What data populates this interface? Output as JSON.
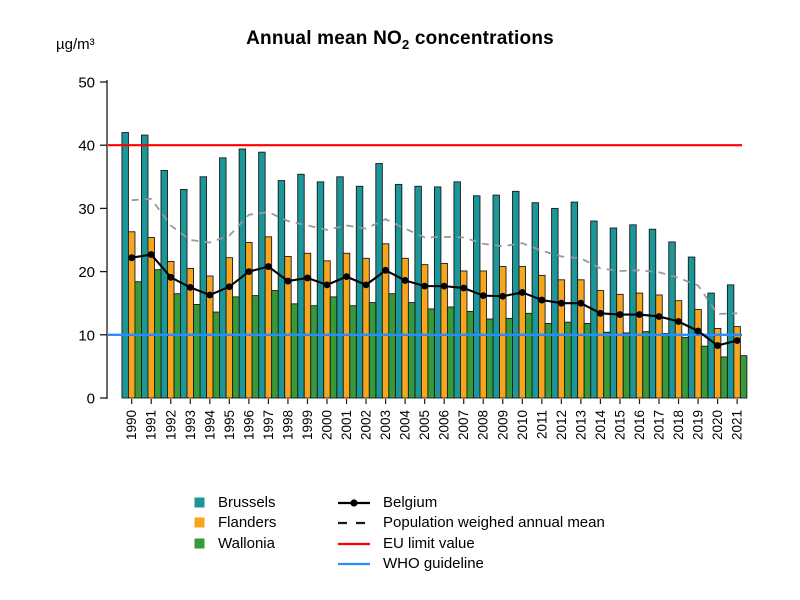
{
  "title": {
    "prefix": "Annual mean NO",
    "sub": "2",
    "suffix": " concentrations"
  },
  "y_axis": {
    "unit_label": "µg/m³",
    "ticks": [
      0,
      10,
      20,
      30,
      40,
      50
    ],
    "min": 0,
    "max": 50
  },
  "x_axis": {
    "label_rotation": -90
  },
  "chart_data": {
    "type": "bar",
    "title": "Annual mean NO2 concentrations",
    "ylabel": "µg/m³",
    "ylim": [
      0,
      50
    ],
    "grid": false,
    "legend_position": "bottom",
    "categories": [
      1990,
      1991,
      1992,
      1993,
      1994,
      1995,
      1996,
      1997,
      1998,
      1999,
      2000,
      2001,
      2002,
      2003,
      2004,
      2005,
      2006,
      2007,
      2008,
      2009,
      2010,
      2011,
      2012,
      2013,
      2014,
      2015,
      2016,
      2017,
      2018,
      2019,
      2020,
      2021
    ],
    "series": [
      {
        "name": "Brussels",
        "type": "bar",
        "color": "#1B9699",
        "values": [
          42.0,
          41.6,
          36.0,
          33.0,
          35.0,
          38.0,
          39.4,
          38.9,
          34.4,
          35.4,
          34.2,
          35.0,
          33.5,
          37.1,
          33.8,
          33.5,
          33.4,
          34.2,
          32.0,
          32.1,
          32.7,
          30.9,
          30.0,
          31.0,
          28.0,
          26.9,
          27.4,
          26.7,
          24.7,
          22.3,
          16.6,
          17.9
        ]
      },
      {
        "name": "Flanders",
        "type": "bar",
        "color": "#F8A51E",
        "values": [
          26.3,
          25.4,
          21.6,
          20.5,
          19.3,
          22.2,
          24.6,
          25.5,
          22.4,
          22.9,
          21.7,
          22.9,
          22.1,
          24.4,
          22.1,
          21.1,
          21.3,
          20.1,
          20.1,
          20.8,
          20.8,
          19.4,
          18.7,
          18.7,
          17.0,
          16.4,
          16.6,
          16.3,
          15.4,
          14.0,
          11.0,
          11.3
        ]
      },
      {
        "name": "Wallonia",
        "type": "bar",
        "color": "#379A38",
        "values": [
          18.4,
          20.3,
          16.5,
          14.8,
          13.6,
          16.0,
          16.2,
          17.0,
          14.9,
          14.6,
          16.0,
          14.6,
          15.1,
          16.5,
          15.1,
          14.1,
          14.4,
          13.7,
          12.5,
          12.6,
          13.4,
          11.8,
          12.0,
          11.8,
          10.4,
          10.3,
          10.5,
          10.2,
          9.6,
          8.2,
          6.5,
          6.7
        ]
      },
      {
        "name": "Belgium",
        "type": "line-markers",
        "color": "#000000",
        "values": [
          22.2,
          22.7,
          19.1,
          17.5,
          16.3,
          17.6,
          20.0,
          20.8,
          18.5,
          19.0,
          17.9,
          19.2,
          17.9,
          20.2,
          18.6,
          17.7,
          17.7,
          17.4,
          16.2,
          16.1,
          16.7,
          15.5,
          15.0,
          15.0,
          13.4,
          13.2,
          13.2,
          12.9,
          12.1,
          10.6,
          8.3,
          9.1
        ]
      },
      {
        "name": "Population weighed annual mean",
        "type": "dashed-line",
        "color": "#999999",
        "values": [
          31.3,
          31.5,
          27.3,
          25.0,
          24.6,
          25.7,
          29.0,
          29.4,
          28.0,
          27.3,
          26.6,
          27.3,
          26.8,
          28.3,
          26.8,
          25.4,
          25.5,
          25.4,
          24.4,
          24.0,
          24.5,
          23.3,
          22.4,
          22.1,
          20.5,
          20.1,
          20.2,
          19.9,
          19.0,
          17.8,
          13.3,
          13.4
        ]
      },
      {
        "name": "EU limit value",
        "type": "hline",
        "color": "#FF0000",
        "value": 40
      },
      {
        "name": "WHO guideline",
        "type": "hline",
        "color": "#2B8CFF",
        "value": 10
      }
    ]
  },
  "legend": {
    "left_column": [
      {
        "label": "Brussels",
        "swatch": "square",
        "color": "#1B9699"
      },
      {
        "label": "Flanders",
        "swatch": "square",
        "color": "#F8A51E"
      },
      {
        "label": "Wallonia",
        "swatch": "square",
        "color": "#379A38"
      }
    ],
    "right_column": [
      {
        "label": "Belgium",
        "swatch": "line-dot",
        "color": "#000000"
      },
      {
        "label": "Population weighed annual mean",
        "swatch": "dashes",
        "color": "#1a1a1a"
      },
      {
        "label": "EU limit value",
        "swatch": "line",
        "color": "#FF0000"
      },
      {
        "label": "WHO guideline",
        "swatch": "line",
        "color": "#2B8CFF"
      }
    ]
  }
}
